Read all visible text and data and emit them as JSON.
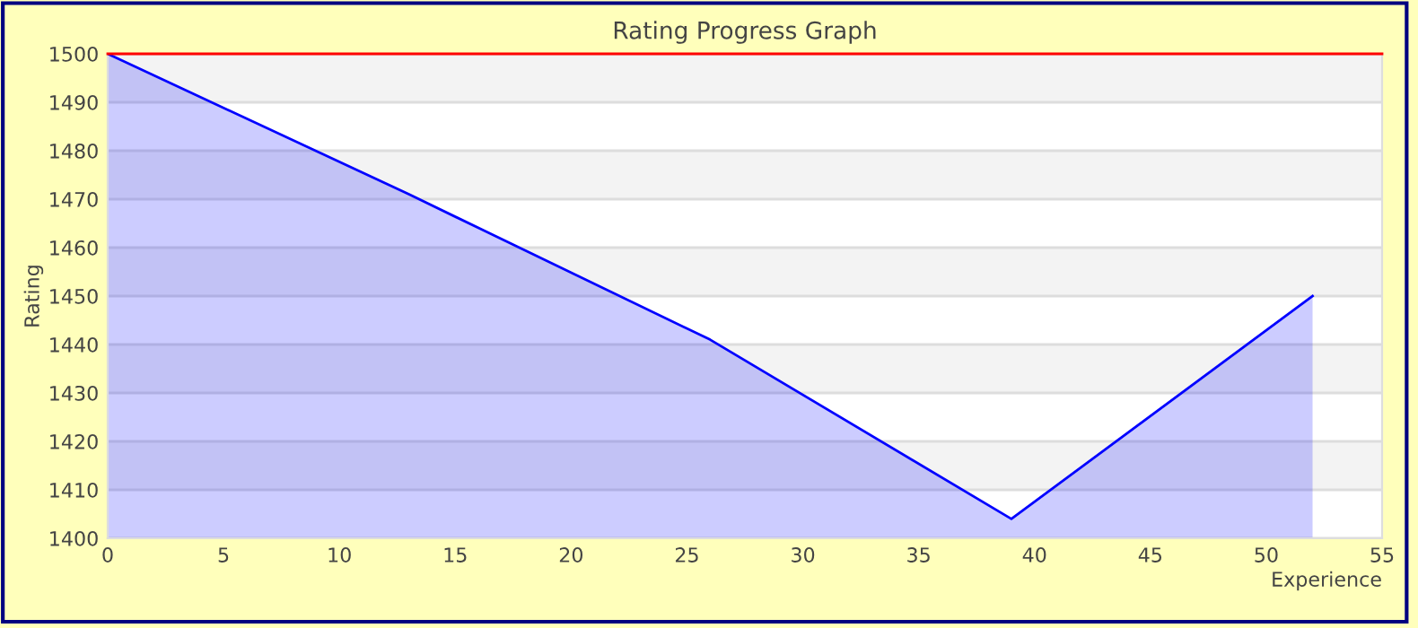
{
  "chart_data": {
    "type": "area",
    "title": "Rating Progress Graph",
    "xlabel": "Experience",
    "ylabel": "Rating",
    "x": [
      0,
      13,
      26,
      39,
      52
    ],
    "series": [
      {
        "color": "#0000ff",
        "values": [
          1500,
          1471,
          1441,
          1404,
          1450
        ]
      }
    ],
    "xlim": [
      0,
      55
    ],
    "xticks": [
      0,
      5,
      10,
      15,
      20,
      25,
      30,
      35,
      40,
      45,
      50,
      55
    ],
    "ylim": [
      1400,
      1500
    ],
    "yticks": [
      1400,
      1410,
      1420,
      1430,
      1440,
      1450,
      1460,
      1470,
      1480,
      1490,
      1500
    ],
    "grid": "y",
    "ref_lines": [
      {
        "axis": "y",
        "value": 1500,
        "color": "#ff0000"
      }
    ]
  }
}
